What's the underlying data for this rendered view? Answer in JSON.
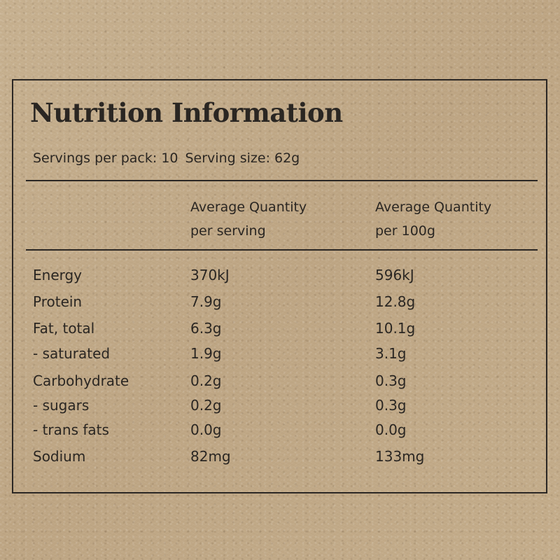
{
  "title": "Nutrition Information",
  "servings": {
    "per_pack": "Servings per pack: 10",
    "size": "Serving size: 62g"
  },
  "columns": {
    "serving": [
      "Average Quantity",
      "per serving"
    ],
    "per100": [
      "Average Quantity",
      "per 100g"
    ]
  },
  "rows": [
    {
      "name": "Energy",
      "per_serving": "370kJ",
      "per_100g": "596kJ"
    },
    {
      "name": "Protein",
      "per_serving": "7.9g",
      "per_100g": "12.8g"
    },
    {
      "name": "Fat, total",
      "per_serving": "6.3g",
      "per_100g": "10.1g"
    },
    {
      "name": "- saturated",
      "per_serving": "1.9g",
      "per_100g": "3.1g"
    },
    {
      "name": "Carbohydrate",
      "per_serving": "0.2g",
      "per_100g": "0.3g"
    },
    {
      "name": "- sugars",
      "per_serving": "0.2g",
      "per_100g": "0.3g"
    },
    {
      "name": "- trans fats",
      "per_serving": "0.0g",
      "per_100g": "0.0g"
    },
    {
      "name": "Sodium",
      "per_serving": "82mg",
      "per_100g": "133mg"
    }
  ]
}
